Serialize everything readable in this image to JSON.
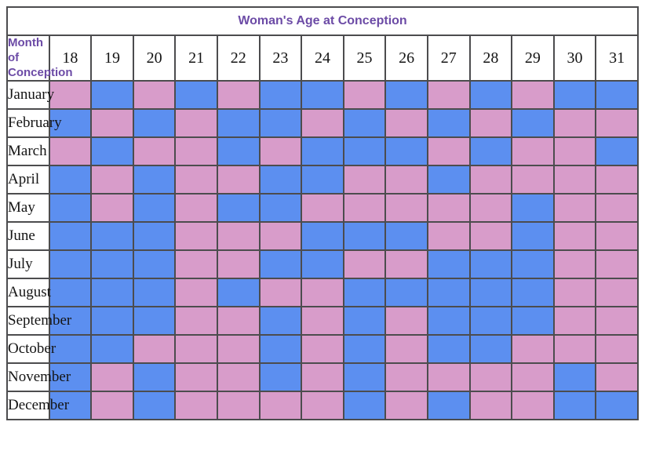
{
  "chart_data": {
    "type": "heatmap",
    "title": "Woman's Age at Conception",
    "row_header": "Month of Conception",
    "columns": [
      "18",
      "19",
      "20",
      "21",
      "22",
      "23",
      "24",
      "25",
      "26",
      "27",
      "28",
      "29",
      "30",
      "31"
    ],
    "cell_colors": {
      "P": "#d89cca",
      "B": "#5c8ff0"
    },
    "color_names": {
      "P": "pink",
      "B": "blue"
    },
    "rows": [
      {
        "month": "January",
        "cells": [
          "P",
          "B",
          "P",
          "B",
          "P",
          "B",
          "B",
          "P",
          "B",
          "P",
          "B",
          "P",
          "B",
          "B"
        ]
      },
      {
        "month": "February",
        "cells": [
          "B",
          "P",
          "B",
          "P",
          "B",
          "B",
          "P",
          "B",
          "P",
          "B",
          "P",
          "B",
          "P",
          "P"
        ]
      },
      {
        "month": "March",
        "cells": [
          "P",
          "B",
          "P",
          "P",
          "B",
          "P",
          "B",
          "B",
          "B",
          "P",
          "B",
          "P",
          "P",
          "B"
        ]
      },
      {
        "month": "April",
        "cells": [
          "B",
          "P",
          "B",
          "P",
          "P",
          "B",
          "B",
          "P",
          "P",
          "B",
          "P",
          "P",
          "P",
          "P"
        ]
      },
      {
        "month": "May",
        "cells": [
          "B",
          "P",
          "B",
          "P",
          "B",
          "B",
          "P",
          "P",
          "P",
          "P",
          "P",
          "B",
          "P",
          "P"
        ]
      },
      {
        "month": "June",
        "cells": [
          "B",
          "B",
          "B",
          "P",
          "P",
          "P",
          "B",
          "B",
          "B",
          "P",
          "P",
          "B",
          "P",
          "P"
        ]
      },
      {
        "month": "July",
        "cells": [
          "B",
          "B",
          "B",
          "P",
          "P",
          "B",
          "B",
          "P",
          "P",
          "B",
          "B",
          "B",
          "P",
          "P"
        ]
      },
      {
        "month": "August",
        "cells": [
          "B",
          "B",
          "B",
          "P",
          "B",
          "P",
          "P",
          "B",
          "B",
          "B",
          "B",
          "B",
          "P",
          "P"
        ]
      },
      {
        "month": "September",
        "cells": [
          "B",
          "B",
          "B",
          "P",
          "P",
          "B",
          "P",
          "B",
          "P",
          "B",
          "B",
          "B",
          "P",
          "P"
        ]
      },
      {
        "month": "October",
        "cells": [
          "B",
          "B",
          "P",
          "P",
          "P",
          "B",
          "P",
          "B",
          "P",
          "B",
          "B",
          "P",
          "P",
          "P"
        ]
      },
      {
        "month": "November",
        "cells": [
          "B",
          "P",
          "B",
          "P",
          "P",
          "B",
          "P",
          "B",
          "P",
          "P",
          "P",
          "P",
          "B",
          "P"
        ]
      },
      {
        "month": "December",
        "cells": [
          "B",
          "P",
          "B",
          "P",
          "P",
          "P",
          "P",
          "B",
          "P",
          "B",
          "P",
          "P",
          "B",
          "B"
        ]
      }
    ],
    "layout": {
      "grid": "on",
      "title_text_color": "#6c4ba6",
      "grid_line_color": "#4c4c4e",
      "background_color": "#ffffff"
    }
  }
}
